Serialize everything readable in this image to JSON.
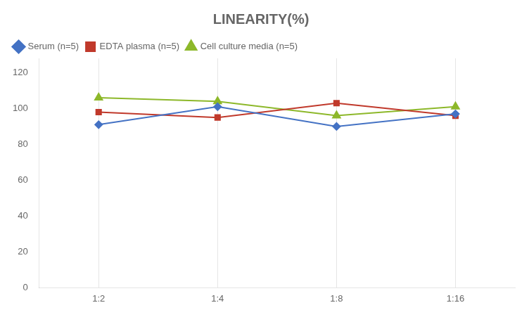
{
  "chart_data": {
    "type": "line",
    "title": "LINEARITY(%)",
    "categories": [
      "1:2",
      "1:4",
      "1:8",
      "1:16"
    ],
    "series": [
      {
        "name": "Serum (n=5)",
        "color": "#4472C4",
        "marker": "diamond",
        "values": [
          91,
          101,
          90,
          97
        ]
      },
      {
        "name": "EDTA plasma (n=5)",
        "color": "#C0392B",
        "marker": "square",
        "values": [
          98,
          95,
          103,
          96
        ]
      },
      {
        "name": "Cell culture media (n=5)",
        "color": "#8db82a",
        "marker": "triangle",
        "values": [
          106,
          104,
          96,
          101
        ]
      }
    ],
    "ylim": [
      0,
      128
    ],
    "yticks": [
      0,
      20,
      40,
      60,
      80,
      100,
      120
    ],
    "grid": true,
    "legend": "upper left"
  }
}
